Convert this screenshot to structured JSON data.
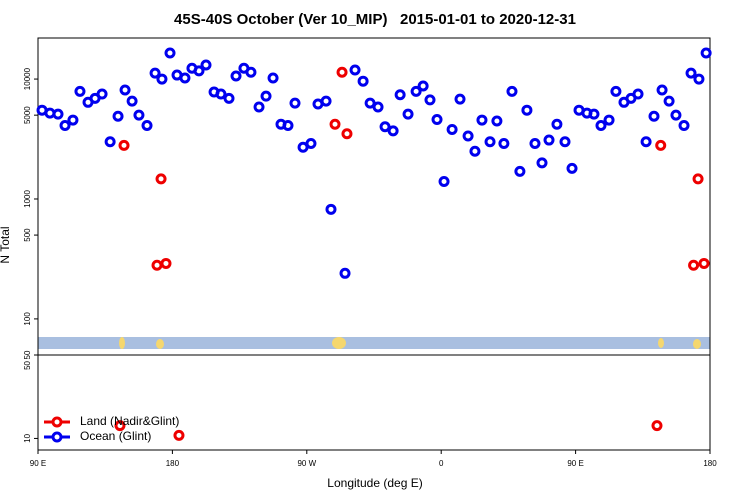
{
  "chart_data": [
    {
      "type": "scatter",
      "title": "45S-40S October (Ver 10_MIP)   2015-01-01 to 2020-12-31",
      "ylabel": "N Total",
      "log_y": true,
      "ylim": [
        50,
        22000
      ],
      "yticks": [
        50,
        100,
        500,
        1000,
        5000,
        10000
      ],
      "xlim": [
        90,
        540
      ],
      "series": [
        {
          "color": "#ee0000",
          "x": [
            147.6,
            172.4,
            169.7,
            175.7,
            293.6,
            288.9,
            296.9,
            507.0,
            532.0,
            529.0,
            536.0
          ],
          "values": [
            2800,
            1470,
            280,
            290,
            11400,
            4200,
            3500,
            2800,
            1470,
            280,
            290
          ]
        },
        {
          "color": "#0000ee",
          "x": [
            92.7,
            98.0,
            103.4,
            108.1,
            113.4,
            118.1,
            123.5,
            128.2,
            132.9,
            138.3,
            143.6,
            148.3,
            153.0,
            157.6,
            163.0,
            168.4,
            173.0,
            178.4,
            183.1,
            188.4,
            193.1,
            197.8,
            202.5,
            207.9,
            212.5,
            217.9,
            222.6,
            227.9,
            232.6,
            238.0,
            242.7,
            247.4,
            252.7,
            257.4,
            262.1,
            267.5,
            272.8,
            277.5,
            282.9,
            286.2,
            295.6,
            302.3,
            307.7,
            312.4,
            317.7,
            322.4,
            327.8,
            332.5,
            337.8,
            343.2,
            347.9,
            352.5,
            357.2,
            361.9,
            367.3,
            372.6,
            378.0,
            382.6,
            387.3,
            392.7,
            397.3,
            402.0,
            407.4,
            412.7,
            417.4,
            422.8,
            427.5,
            432.2,
            437.5,
            442.9,
            447.6,
            452.3,
            457.6,
            462.3,
            467.0,
            472.4,
            477.0,
            482.4,
            487.1,
            491.8,
            497.2,
            502.5,
            507.9,
            512.6,
            517.2,
            522.6,
            527.3,
            532.6,
            537.4
          ],
          "values": [
            5500,
            5200,
            5100,
            4100,
            4550,
            7900,
            6400,
            6900,
            7500,
            3000,
            4900,
            8100,
            6550,
            5000,
            4100,
            11200,
            10000,
            16500,
            10800,
            10200,
            12300,
            11700,
            13100,
            7800,
            7500,
            6900,
            10600,
            12300,
            11400,
            5850,
            7200,
            10200,
            4200,
            4100,
            6300,
            2700,
            2900,
            6200,
            6550,
            820,
            240,
            11900,
            9600,
            6300,
            5850,
            4000,
            3700,
            7400,
            5100,
            7900,
            8750,
            6700,
            4600,
            1400,
            3800,
            6800,
            3350,
            2500,
            4550,
            3000,
            4470,
            2900,
            7900,
            1700,
            5500,
            2900,
            2000,
            3100,
            4200,
            3000,
            1800,
            5500,
            5200,
            5100,
            4100,
            4550,
            7900,
            6400,
            6900,
            7500,
            3000,
            4900,
            8100,
            6550,
            5000,
            4100,
            11200,
            10000,
            16500
          ]
        }
      ]
    },
    {
      "type": "scatter",
      "xlabel": "Longitude (deg E)",
      "log_y": true,
      "ylim": [
        8,
        50
      ],
      "yticks": [
        10,
        50
      ],
      "xlim": [
        90,
        540
      ],
      "xticks": [
        {
          "value": 90,
          "label": "90 E"
        },
        {
          "value": 180,
          "label": "180"
        },
        {
          "value": 270,
          "label": "90 W"
        },
        {
          "value": 360,
          "label": "0"
        },
        {
          "value": 450,
          "label": "90 E"
        },
        {
          "value": 540,
          "label": "180"
        }
      ],
      "legend": "bottom-left",
      "series": [
        {
          "name": "Land (Nadir&Glint)",
          "color": "#ee0000",
          "x": [
            144.9,
            184.4,
            504.5
          ],
          "values": [
            12.8,
            10.6,
            12.8
          ]
        },
        {
          "name": "Ocean (Glint)",
          "color": "#0000ee",
          "x": [],
          "values": []
        }
      ]
    }
  ]
}
